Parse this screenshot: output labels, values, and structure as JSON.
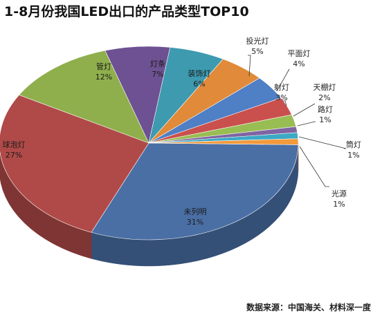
{
  "chart_data": {
    "type": "pie",
    "title": "1-8月份我国LED出口的产品类型TOP10",
    "slices": [
      {
        "label": "未列明",
        "value": 31,
        "value_label": "31%",
        "color": "#4a6fa5"
      },
      {
        "label": "球泡灯",
        "value": 27,
        "value_label": "27%",
        "color": "#b04a48"
      },
      {
        "label": "管灯",
        "value": 12,
        "value_label": "12%",
        "color": "#8faf4d"
      },
      {
        "label": "灯条",
        "value": 7,
        "value_label": "7%",
        "color": "#6e5192"
      },
      {
        "label": "装饰灯",
        "value": 6,
        "value_label": "6%",
        "color": "#3d9aaf"
      },
      {
        "label": "投光灯",
        "value": 5,
        "value_label": "5%",
        "color": "#e08a3a"
      },
      {
        "label": "平面灯",
        "value": 4,
        "value_label": "4%",
        "color": "#4f7fc4"
      },
      {
        "label": "射灯",
        "value": 3,
        "value_label": "3%",
        "color": "#c9504d"
      },
      {
        "label": "天棚灯",
        "value": 2,
        "value_label": "2%",
        "color": "#98bd52"
      },
      {
        "label": "路灯",
        "value": 1,
        "value_label": "1%",
        "color": "#8064a2"
      },
      {
        "label": "筒灯",
        "value": 1,
        "value_label": "1%",
        "color": "#3ca9c5"
      },
      {
        "label": "光源",
        "value": 1,
        "value_label": "1%",
        "color": "#f39a3c"
      }
    ]
  },
  "source_text": "数据来源：中国海关、材料深一度"
}
